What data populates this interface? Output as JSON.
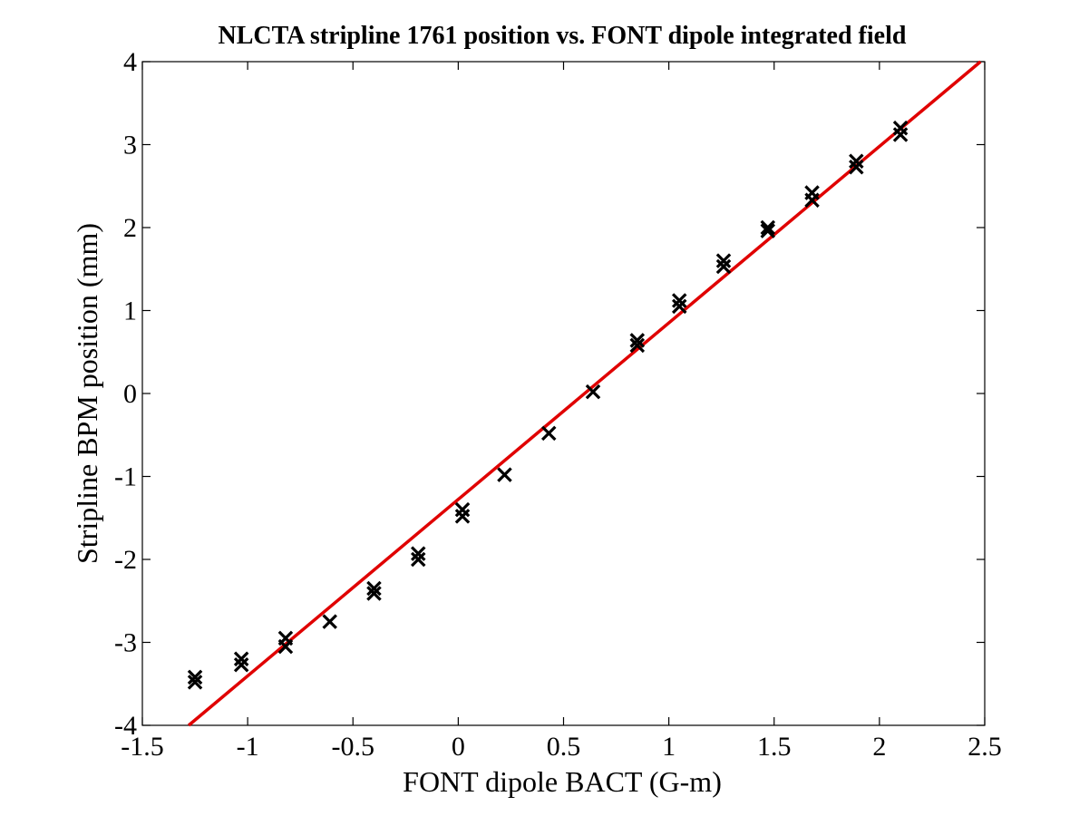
{
  "chart_data": {
    "type": "scatter",
    "title": "NLCTA stripline 1761 position vs. FONT dipole integrated field",
    "xlabel": "FONT dipole BACT (G-m)",
    "ylabel": "Stripline BPM position (mm)",
    "xlim": [
      -1.5,
      2.5
    ],
    "ylim": [
      -4,
      4
    ],
    "xticks": [
      -1.5,
      -1,
      -0.5,
      0,
      0.5,
      1,
      1.5,
      2,
      2.5
    ],
    "xtick_labels": [
      "-1.5",
      "-1",
      "-0.5",
      "0",
      "0.5",
      "1",
      "1.5",
      "2",
      "2.5"
    ],
    "yticks": [
      -4,
      -3,
      -2,
      -1,
      0,
      1,
      2,
      3,
      4
    ],
    "ytick_labels": [
      "-4",
      "-3",
      "-2",
      "-1",
      "0",
      "1",
      "2",
      "3",
      "4"
    ],
    "grid": false,
    "series": [
      {
        "marker": "x",
        "color": "#000000",
        "points": [
          [
            -1.25,
            -3.42
          ],
          [
            -1.25,
            -3.48
          ],
          [
            -1.03,
            -3.2
          ],
          [
            -1.03,
            -3.27
          ],
          [
            -0.82,
            -2.95
          ],
          [
            -0.82,
            -3.05
          ],
          [
            -0.61,
            -2.75
          ],
          [
            -0.4,
            -2.35
          ],
          [
            -0.4,
            -2.41
          ],
          [
            -0.19,
            -1.93
          ],
          [
            -0.19,
            -2.0
          ],
          [
            0.02,
            -1.4
          ],
          [
            0.02,
            -1.48
          ],
          [
            0.22,
            -0.98
          ],
          [
            0.43,
            -0.48
          ],
          [
            0.64,
            0.02
          ],
          [
            0.85,
            0.58
          ],
          [
            0.85,
            0.64
          ],
          [
            1.05,
            1.05
          ],
          [
            1.05,
            1.12
          ],
          [
            1.26,
            1.53
          ],
          [
            1.26,
            1.6
          ],
          [
            1.47,
            1.96
          ],
          [
            1.47,
            2.0
          ],
          [
            1.68,
            2.33
          ],
          [
            1.68,
            2.42
          ],
          [
            1.89,
            2.73
          ],
          [
            1.89,
            2.8
          ],
          [
            2.1,
            3.12
          ],
          [
            2.1,
            3.2
          ]
        ]
      },
      {
        "type": "line",
        "color": "#e00000",
        "x": [
          -1.28,
          2.48
        ],
        "y": [
          -4.0,
          4.0
        ]
      }
    ]
  }
}
